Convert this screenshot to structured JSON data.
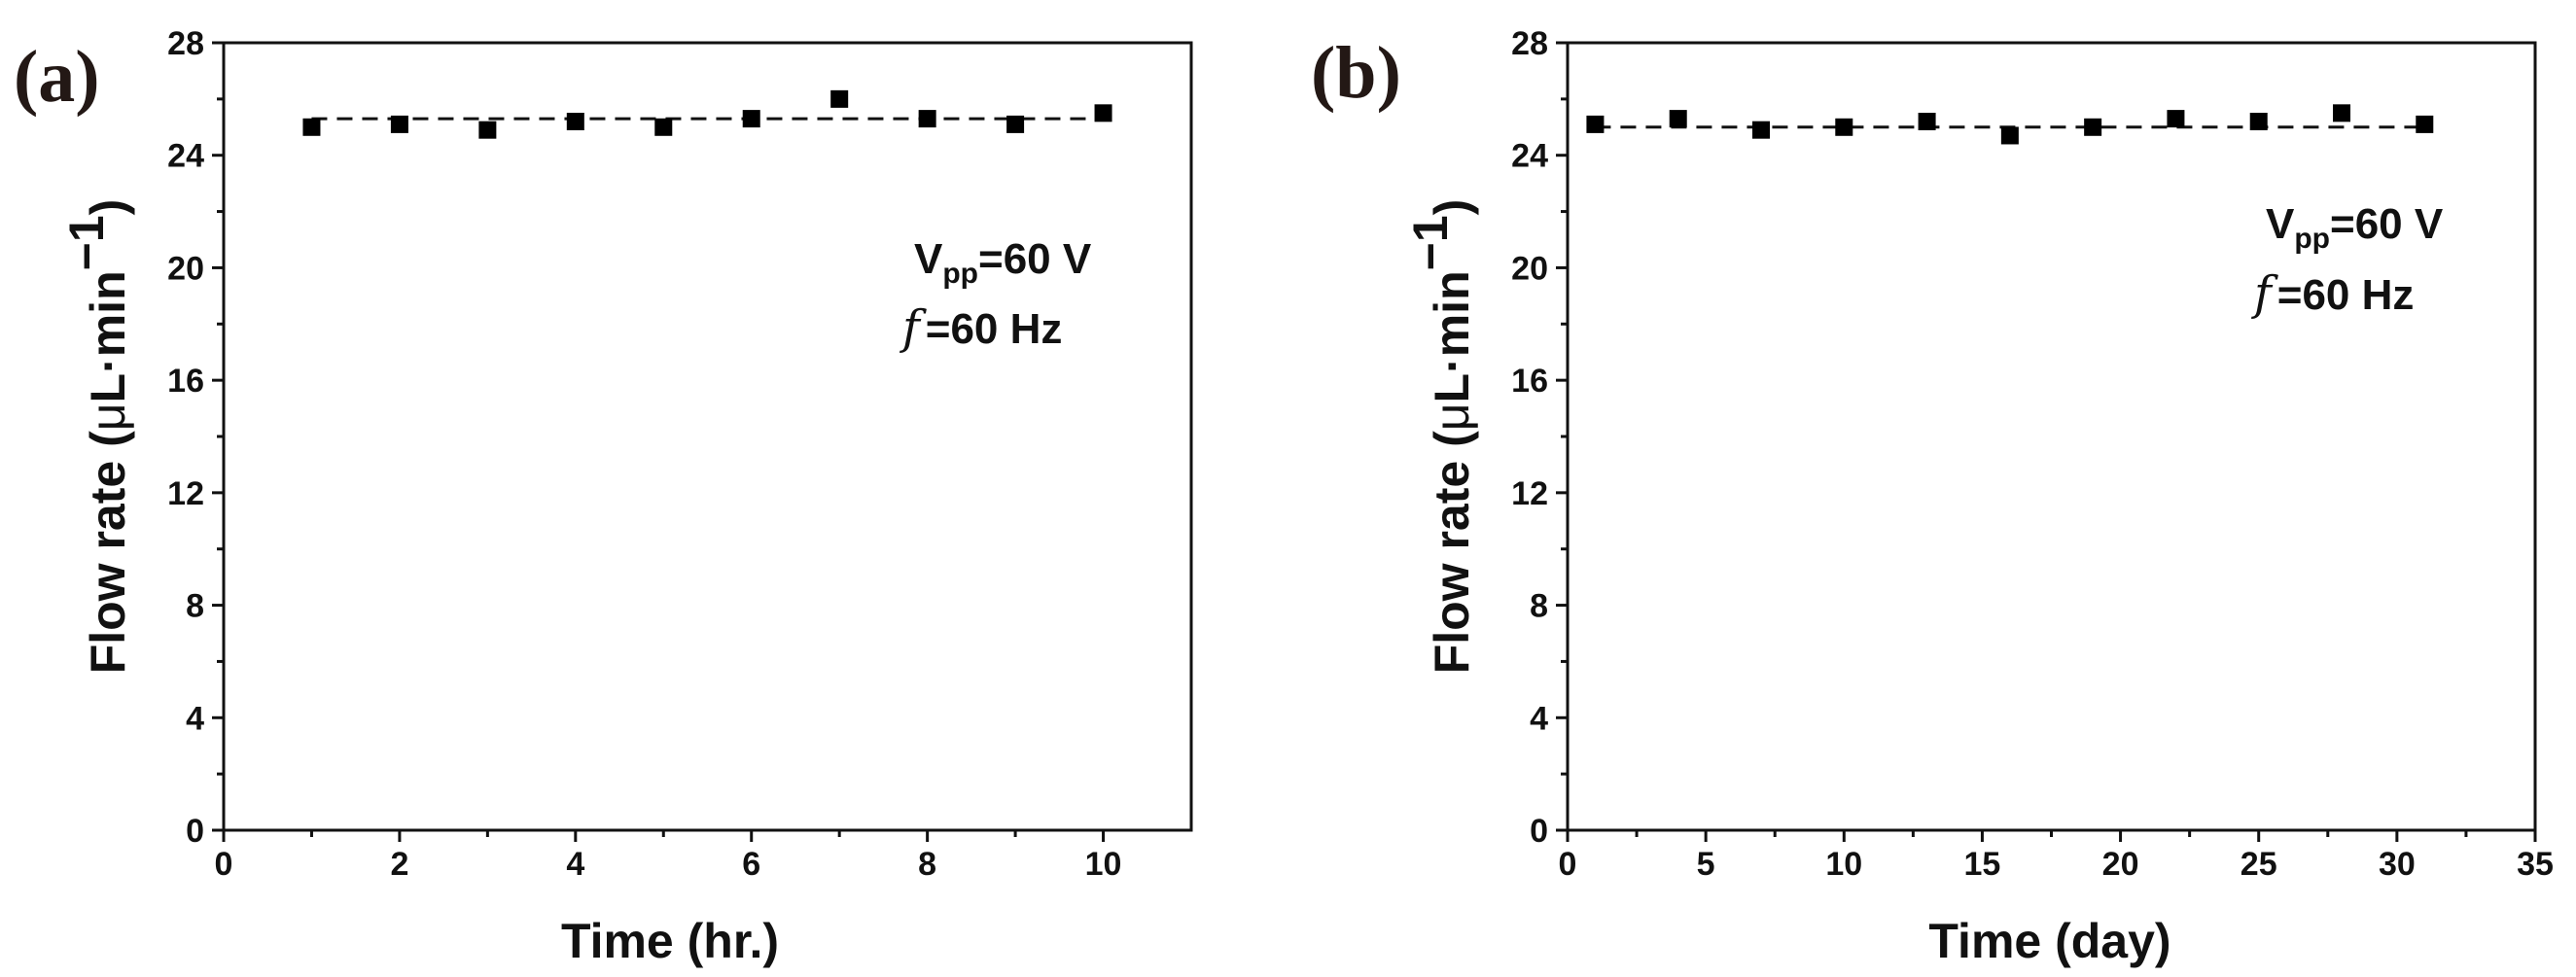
{
  "figure": {
    "panels": [
      {
        "panel_label": "(a)",
        "annotation": {
          "v_main": "V",
          "v_sub": "pp",
          "v_value": "=60 V",
          "f_symbol": "f",
          "f_value": "=60 Hz"
        }
      },
      {
        "panel_label": "(b)",
        "annotation": {
          "v_main": "V",
          "v_sub": "pp",
          "v_value": "=60 V",
          "f_symbol": "f",
          "f_value": "=60 Hz"
        }
      }
    ]
  },
  "chart_data": [
    {
      "type": "scatter",
      "xlabel": "Time (hr.)",
      "ylabel": {
        "prefix": "Flow rate (",
        "mu": "μ",
        "unit": "L·min",
        "sup": "−1",
        "suffix": ")"
      },
      "xlim": [
        0,
        11
      ],
      "ylim": [
        0,
        28
      ],
      "xticks": [
        0,
        2,
        4,
        6,
        8,
        10
      ],
      "xminor": [
        1,
        3,
        5,
        7,
        9
      ],
      "yticks": [
        0,
        4,
        8,
        12,
        16,
        20,
        24,
        28
      ],
      "yminor": [
        2,
        6,
        10,
        14,
        18,
        22,
        26
      ],
      "grid": false,
      "marker": "square",
      "series": [
        {
          "x": [
            1,
            2,
            3,
            4,
            5,
            6,
            7,
            8,
            9,
            10
          ],
          "y": [
            25.0,
            25.1,
            24.9,
            25.2,
            25.0,
            25.3,
            26.0,
            25.3,
            25.1,
            25.5
          ]
        }
      ],
      "fit_line": {
        "style": "dashed",
        "x": [
          1,
          10
        ],
        "y": [
          25.3,
          25.3
        ]
      }
    },
    {
      "type": "scatter",
      "xlabel": "Time (day)",
      "ylabel": {
        "prefix": "Flow rate (",
        "mu": "μ",
        "unit": "L·min",
        "sup": "−1",
        "suffix": ")"
      },
      "xlim": [
        0,
        35
      ],
      "ylim": [
        0,
        28
      ],
      "xticks": [
        0,
        5,
        10,
        15,
        20,
        25,
        30,
        35
      ],
      "xminor": [
        2.5,
        7.5,
        12.5,
        17.5,
        22.5,
        27.5,
        32.5
      ],
      "yticks": [
        0,
        4,
        8,
        12,
        16,
        20,
        24,
        28
      ],
      "yminor": [
        2,
        6,
        10,
        14,
        18,
        22,
        26
      ],
      "grid": false,
      "marker": "square",
      "series": [
        {
          "x": [
            1,
            4,
            7,
            10,
            13,
            16,
            19,
            22,
            25,
            28,
            31
          ],
          "y": [
            25.1,
            25.3,
            24.9,
            25.0,
            25.2,
            24.7,
            25.0,
            25.3,
            25.2,
            25.5,
            25.1
          ]
        }
      ],
      "fit_line": {
        "style": "dashed",
        "x": [
          1,
          31
        ],
        "y": [
          25.0,
          25.0
        ]
      }
    }
  ]
}
